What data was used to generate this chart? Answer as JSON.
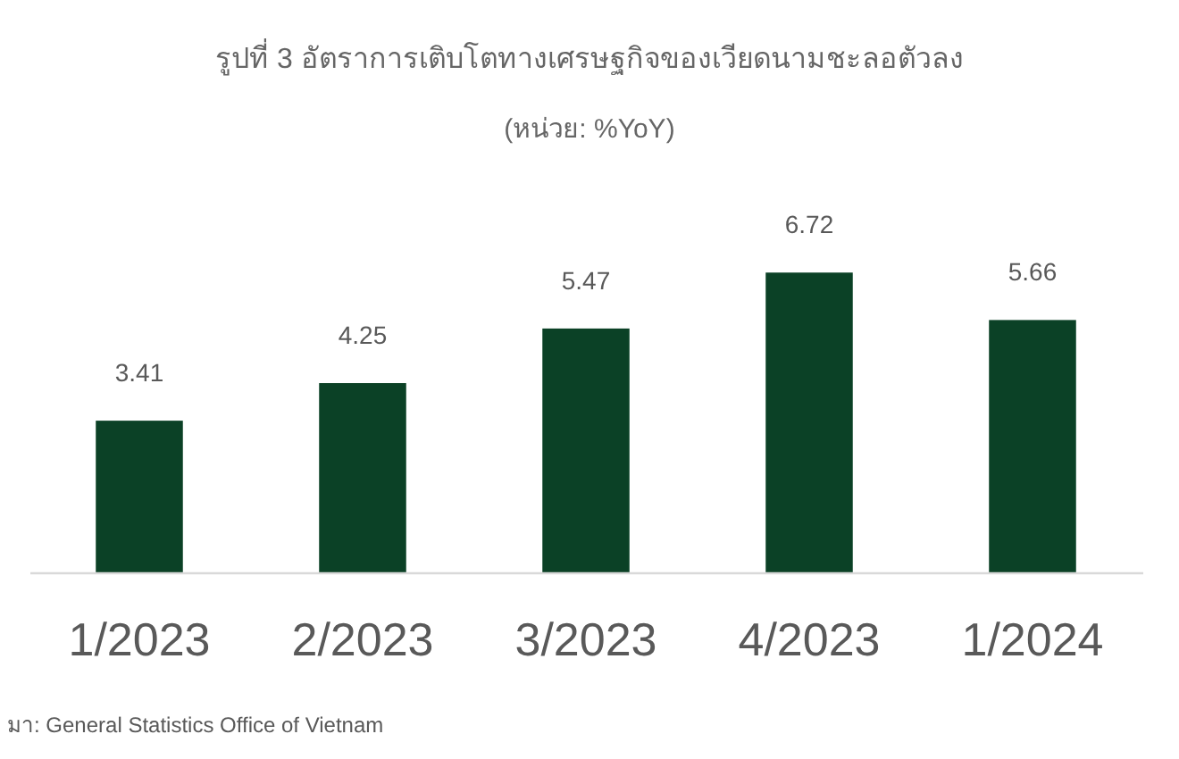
{
  "chart_data": {
    "type": "bar",
    "title": "รูปที่ 3 อัตราการเติบโตทางเศรษฐกิจของเวียดนามชะลอตัวลง",
    "subtitle": "(หน่วย: %YoY)",
    "categories": [
      "1/2023",
      "2/2023",
      "3/2023",
      "4/2023",
      "1/2024"
    ],
    "values": [
      3.41,
      4.25,
      5.47,
      6.72,
      5.66
    ],
    "color": "#0b4126",
    "data_labels": true,
    "annotations": [
      "มา: General Statistics Office of Vietnam"
    ]
  }
}
